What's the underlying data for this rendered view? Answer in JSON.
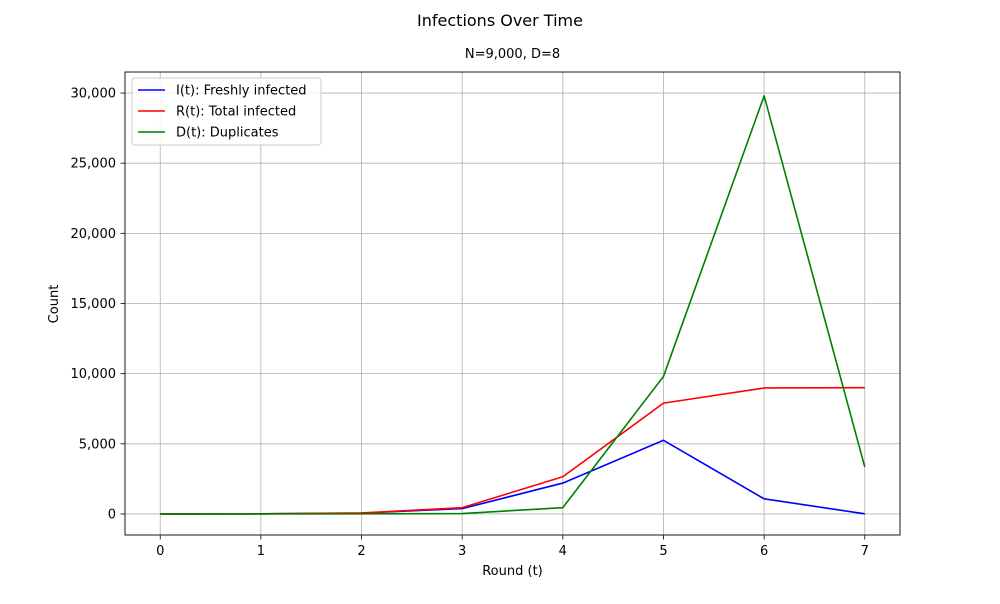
{
  "chart_data": {
    "type": "line",
    "title": "Infections Over Time",
    "subtitle": "N=9,000, D=8",
    "xlabel": "Round (t)",
    "ylabel": "Count",
    "x": [
      0,
      1,
      2,
      3,
      4,
      5,
      6,
      7
    ],
    "xlim": [
      -0.35,
      7.35
    ],
    "ylim": [
      -1500,
      31500
    ],
    "xticks": [
      "0",
      "1",
      "2",
      "3",
      "4",
      "5",
      "6",
      "7"
    ],
    "yticks": [
      0,
      5000,
      10000,
      15000,
      20000,
      25000,
      30000
    ],
    "ytick_labels": [
      "0",
      "5,000",
      "10,000",
      "15,000",
      "20,000",
      "25,000",
      "30,000"
    ],
    "grid": true,
    "legend_position": "top-left",
    "series": [
      {
        "name": "I(t): Freshly infected",
        "color": "#0000ff",
        "values": [
          1,
          8,
          60,
          380,
          2200,
          5250,
          1080,
          10
        ]
      },
      {
        "name": "R(t): Total infected",
        "color": "#ff0000",
        "values": [
          1,
          9,
          70,
          450,
          2650,
          7900,
          8980,
          9000
        ]
      },
      {
        "name": "D(t): Duplicates",
        "color": "#008000",
        "values": [
          0,
          0,
          5,
          30,
          450,
          9800,
          29800,
          3350
        ]
      }
    ]
  }
}
